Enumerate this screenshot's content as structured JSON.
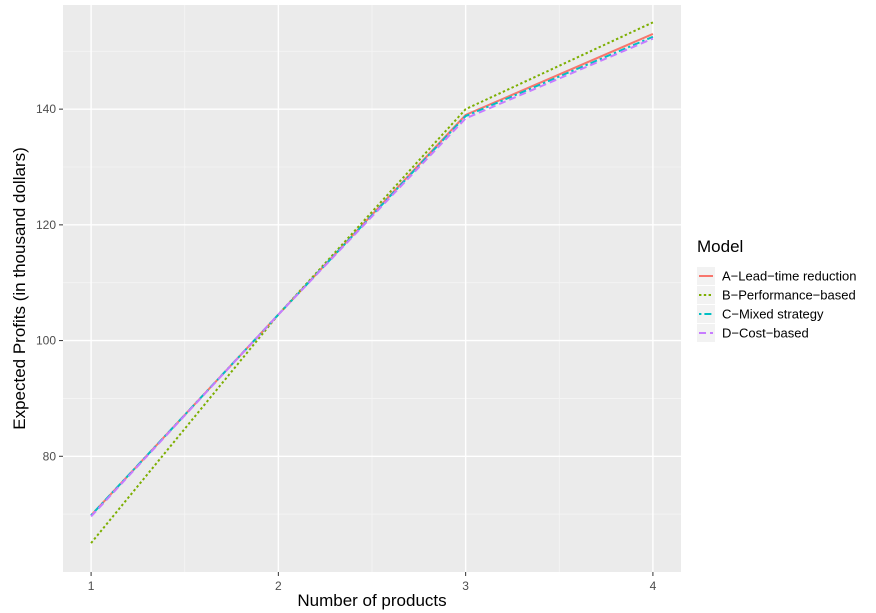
{
  "chart_data": {
    "type": "line",
    "title": "",
    "xlabel": "Number of products",
    "ylabel": "Expected Profits (in thousand dollars)",
    "x": [
      1,
      2,
      3,
      4
    ],
    "x_ticks": [
      "1",
      "2",
      "3",
      "4"
    ],
    "y_ticks": [
      80,
      100,
      120,
      140
    ],
    "xlim": [
      0.85,
      4.15
    ],
    "ylim": [
      60,
      158
    ],
    "grid": true,
    "legend": {
      "title": "Model",
      "position": "right"
    },
    "series": [
      {
        "name": "A−Lead−time reduction",
        "values": [
          69.8,
          104.5,
          139.0,
          153.0
        ],
        "color": "#F8766D",
        "dash": "solid"
      },
      {
        "name": "B−Performance−based",
        "values": [
          65.0,
          104.5,
          140.0,
          155.0
        ],
        "color": "#7CAE00",
        "dash": "dotted"
      },
      {
        "name": "C−Mixed strategy",
        "values": [
          69.8,
          104.5,
          138.8,
          152.5
        ],
        "color": "#00BFC4",
        "dash": "dotdash"
      },
      {
        "name": "D−Cost−based",
        "values": [
          69.6,
          104.5,
          138.4,
          152.2
        ],
        "color": "#C77CFF",
        "dash": "dashed"
      }
    ]
  }
}
